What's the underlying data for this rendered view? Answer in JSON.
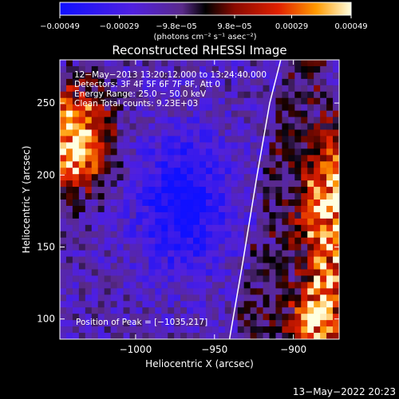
{
  "chart_data": {
    "type": "heatmap",
    "title": "Reconstructed RHESSI Image",
    "xlabel": "Heliocentric X (arcsec)",
    "ylabel": "Heliocentric Y (arcsec)",
    "xlim": [
      -1048,
      -871
    ],
    "ylim": [
      86,
      280
    ],
    "xticks": [
      -1000,
      -950,
      -900
    ],
    "yticks": [
      100,
      150,
      200,
      250
    ],
    "xtick_labels": [
      "−1000",
      "−950",
      "−900"
    ],
    "ytick_labels": [
      "100",
      "150",
      "200",
      "250"
    ],
    "colorbar": {
      "range": [
        -0.00049,
        0.00049
      ],
      "ticks": [
        -0.00049,
        -0.00029,
        -9.8e-05,
        9.8e-05,
        0.00029,
        0.00049
      ],
      "tick_labels": [
        "−0.00049",
        "−0.00029",
        "−9.8e−05",
        "9.8e−05",
        "0.00029",
        "0.00049"
      ],
      "unit_label": "(photons cm⁻² s⁻¹ asec⁻²)"
    },
    "info_lines": [
      "12−May−2013 13:20:12.000 to 13:24:40.000",
      "Detectors: 3F 4F 5F 6F 7F 8F, Att 0",
      "Energy Range: 25.0 − 50.0 keV",
      "Clean     Total counts: 9.23E+03"
    ],
    "peak_label": "Position of Peak = [−1035,217]",
    "limb": {
      "x": [
        -940.5,
        -932,
        -923,
        -915,
        -908
      ],
      "y": [
        86,
        140,
        200,
        250,
        280
      ]
    },
    "bright_regions": [
      {
        "name": "left",
        "x": -1040,
        "y": 225,
        "level": 0.9
      },
      {
        "name": "right",
        "x": -875,
        "y": 175,
        "level": 0.85
      },
      {
        "name": "bottom-right",
        "x": -885,
        "y": 100,
        "level": 0.55
      }
    ],
    "dim_region": {
      "x": -970,
      "y": 180,
      "level": -0.7
    },
    "grid": false
  },
  "footer": {
    "timestamp": "13−May−2022 20:23"
  }
}
